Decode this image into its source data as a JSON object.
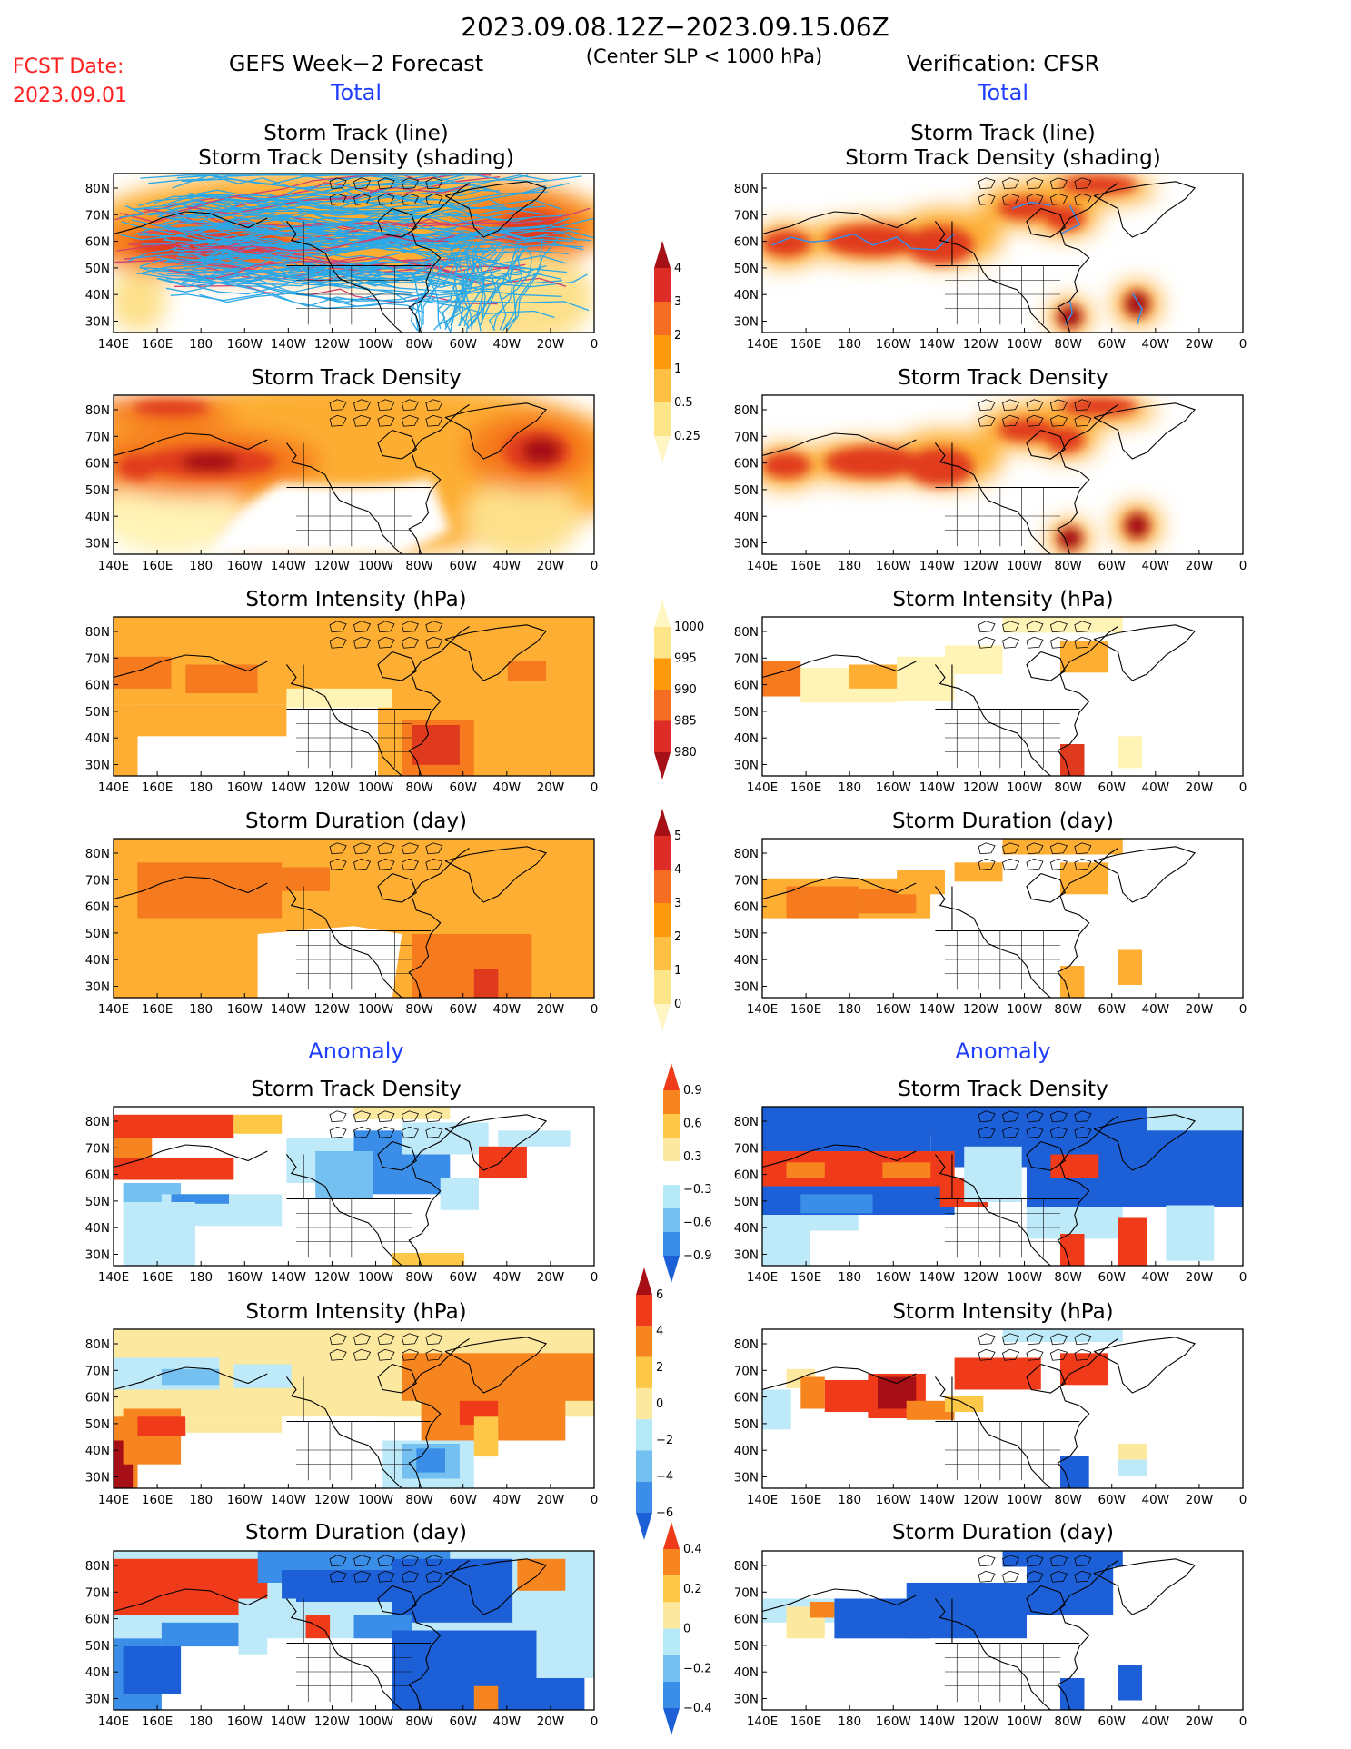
{
  "header": {
    "date_range": "2023.09.08.12Z−2023.09.15.06Z",
    "criterion": "(Center SLP < 1000 hPa)",
    "fcst_label": "FCST Date:",
    "fcst_date": "2023.09.01",
    "left_title": "GEFS Week−2 Forecast",
    "right_title": "Verification: CFSR",
    "section_total": "Total",
    "section_anomaly": "Anomaly"
  },
  "panel_titles": {
    "track_line": "Storm Track (line)",
    "track_density_shading": "Storm Track Density (shading)",
    "track_density": "Storm Track Density",
    "intensity": "Storm Intensity (hPa)",
    "duration": "Storm Duration (day)"
  },
  "axes": {
    "x_ticks": [
      "140E",
      "160E",
      "180",
      "160W",
      "140W",
      "120W",
      "100W",
      "80W",
      "60W",
      "40W",
      "20W",
      "0"
    ],
    "y_ticks": [
      "80N",
      "70N",
      "60N",
      "50N",
      "40N",
      "30N"
    ]
  },
  "colorbars": {
    "total_density": {
      "labels": [
        "4",
        "3",
        "2",
        "1",
        "0.5",
        "0.25"
      ],
      "colors": [
        "#a50f15",
        "#de2d26",
        "#f46d22",
        "#fd9a0b",
        "#fdc045",
        "#fde58a",
        "#fff6c4"
      ]
    },
    "total_intensity": {
      "labels": [
        "1000",
        "995",
        "990",
        "985",
        "980"
      ],
      "colors": [
        "#fff6c4",
        "#fde58a",
        "#fd9a0b",
        "#f46d22",
        "#de2d26",
        "#a50f15"
      ]
    },
    "total_duration": {
      "labels": [
        "5",
        "4",
        "3",
        "2",
        "1",
        "0"
      ],
      "colors": [
        "#a50f15",
        "#de2d26",
        "#f46d22",
        "#fd9a0b",
        "#fdc045",
        "#fde58a",
        "#fff6c4"
      ]
    },
    "anom_density": {
      "labels": [
        "0.9",
        "0.6",
        "0.3",
        "−0.3",
        "−0.6",
        "−0.9"
      ],
      "colors": [
        "#ef3b1a",
        "#f7851f",
        "#fdc848",
        "#fde8a0",
        "#ffffff",
        "#b5e9f7",
        "#74c0f0",
        "#3b8ee8",
        "#1c5fd6"
      ]
    },
    "anom_intensity": {
      "labels": [
        "6",
        "4",
        "2",
        "0",
        "−2",
        "−4",
        "−6"
      ],
      "colors": [
        "#a50f15",
        "#ef3b1a",
        "#f7851f",
        "#fdc848",
        "#fde8a0",
        "#b5e9f7",
        "#74c0f0",
        "#3b8ee8",
        "#1c5fd6"
      ]
    },
    "anom_duration": {
      "labels": [
        "0.4",
        "0.2",
        "0",
        "−0.2",
        "−0.4"
      ],
      "colors": [
        "#ef3b1a",
        "#f7851f",
        "#fdc848",
        "#fde8a0",
        "#b5e9f7",
        "#74c0f0",
        "#3b8ee8",
        "#1c5fd6"
      ]
    }
  },
  "colors": {
    "title_blue": "#1f3fff",
    "fcst_red": "#ff2020",
    "track_blue": "#2aa8e8",
    "track_red": "#d04070"
  }
}
